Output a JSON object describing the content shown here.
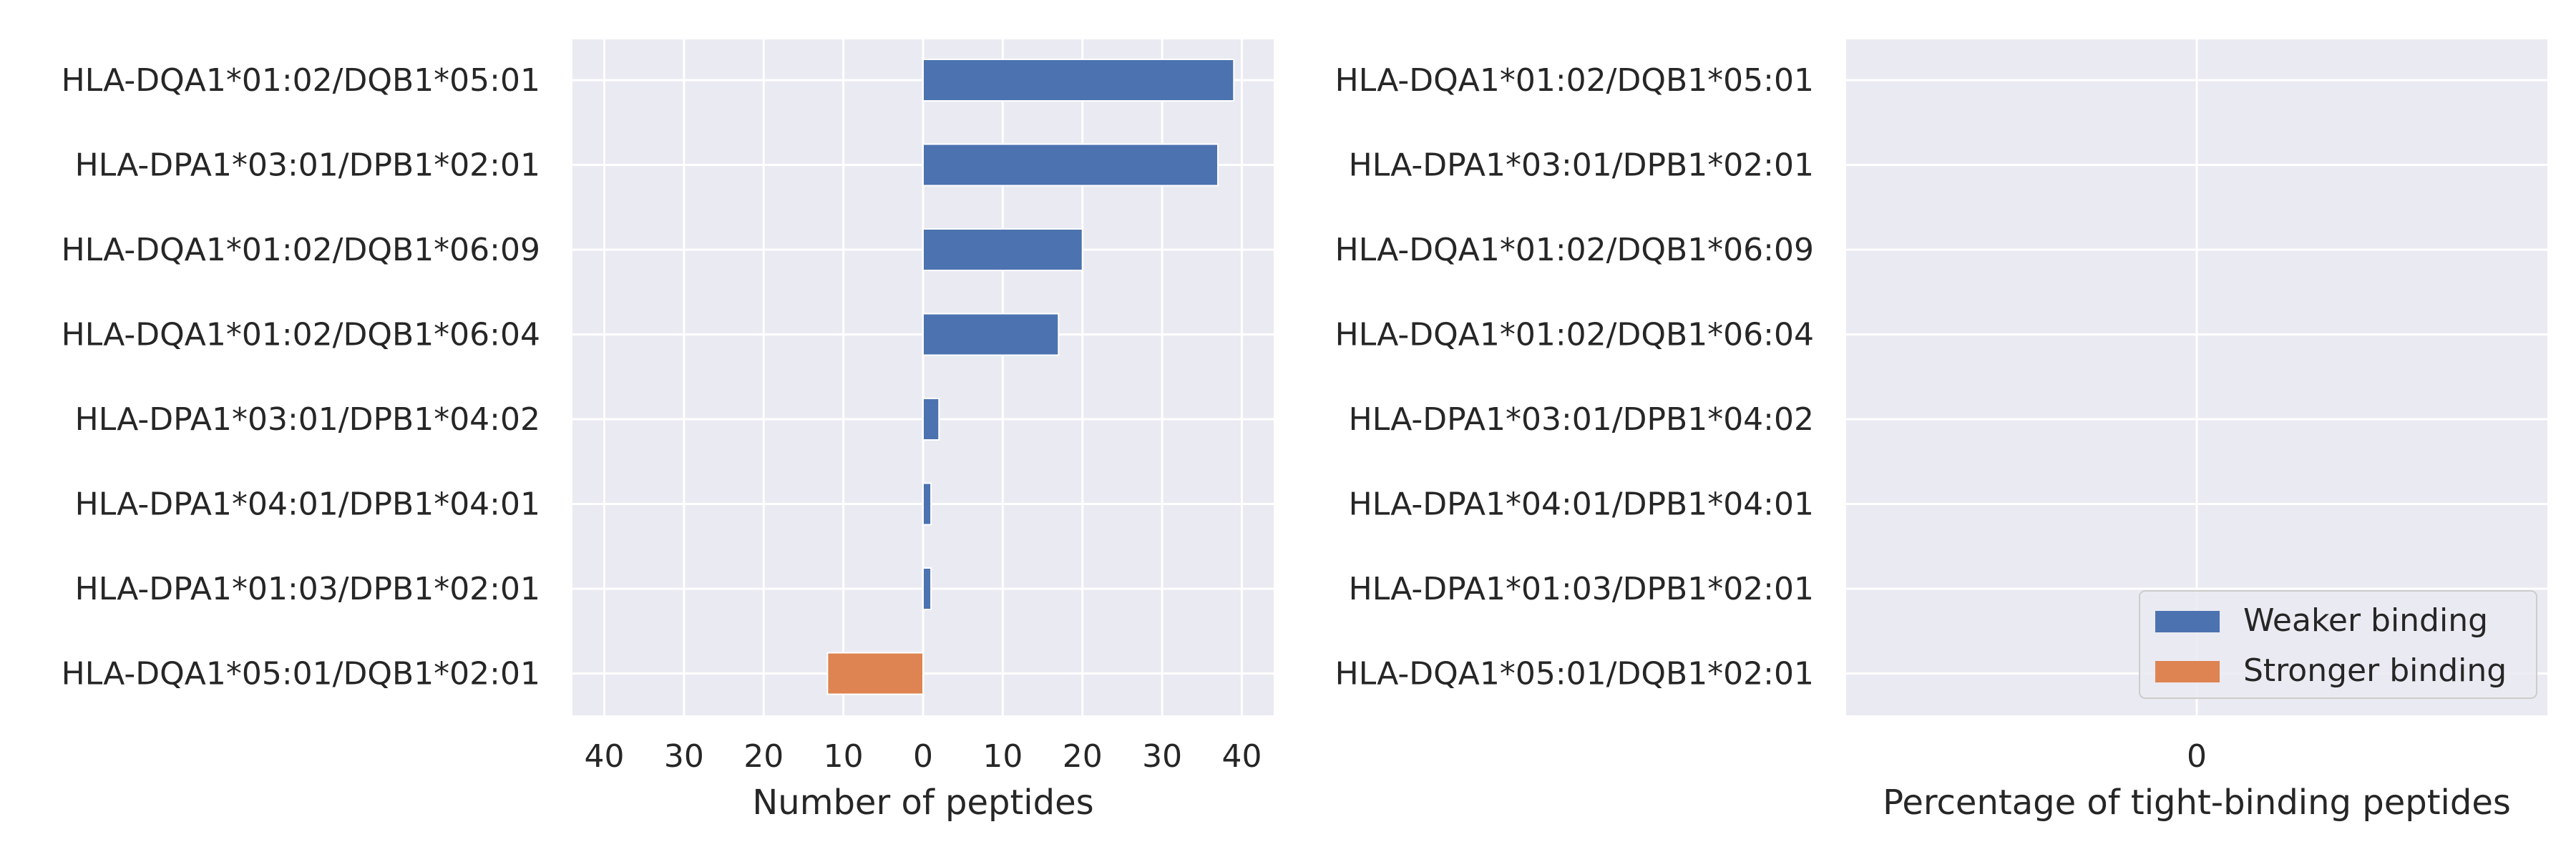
{
  "colors": {
    "background": "#EAEAF2",
    "grid": "#FFFFFF",
    "weaker": "#4C72B0",
    "stronger": "#DD8452",
    "text": "#262626"
  },
  "chart_data": [
    {
      "type": "bar",
      "orientation": "horizontal",
      "categories": [
        "HLA-DQA1*01:02/DQB1*05:01",
        "HLA-DPA1*03:01/DPB1*02:01",
        "HLA-DQA1*01:02/DQB1*06:09",
        "HLA-DQA1*01:02/DQB1*06:04",
        "HLA-DPA1*03:01/DPB1*04:02",
        "HLA-DPA1*04:01/DPB1*04:01",
        "HLA-DPA1*01:03/DPB1*02:01",
        "HLA-DQA1*05:01/DQB1*02:01"
      ],
      "series": [
        {
          "name": "Weaker binding",
          "values": [
            39,
            37,
            20,
            17,
            2,
            1,
            1,
            0
          ]
        },
        {
          "name": "Stronger binding",
          "values": [
            0,
            0,
            0,
            0,
            0,
            0,
            0,
            12
          ]
        }
      ],
      "xlabel": "Number of peptides",
      "xticks": [
        -40,
        -30,
        -20,
        -10,
        0,
        10,
        20,
        30,
        40
      ],
      "xtick_labels": [
        "40",
        "30",
        "20",
        "10",
        "0",
        "10",
        "20",
        "30",
        "40"
      ],
      "xlim": [
        -44,
        44
      ],
      "grid": true
    },
    {
      "type": "bar",
      "orientation": "horizontal",
      "categories": [
        "HLA-DQA1*01:02/DQB1*05:01",
        "HLA-DPA1*03:01/DPB1*02:01",
        "HLA-DQA1*01:02/DQB1*06:09",
        "HLA-DQA1*01:02/DQB1*06:04",
        "HLA-DPA1*03:01/DPB1*04:02",
        "HLA-DPA1*04:01/DPB1*04:01",
        "HLA-DPA1*01:03/DPB1*02:01",
        "HLA-DQA1*05:01/DQB1*02:01"
      ],
      "series": [],
      "xlabel": "Percentage of tight-binding peptides",
      "xticks": [
        0
      ],
      "xtick_labels": [
        "0"
      ],
      "grid": true,
      "legend": {
        "position": "lower-right",
        "entries": [
          "Weaker binding",
          "Stronger binding"
        ]
      }
    }
  ]
}
